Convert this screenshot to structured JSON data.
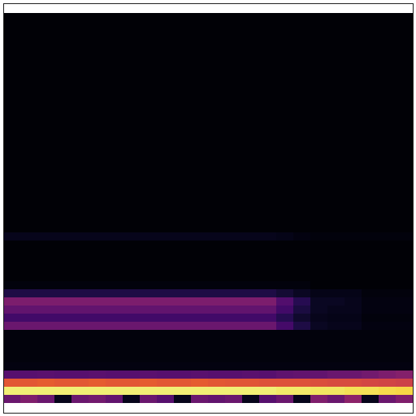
{
  "chart_data": {
    "type": "heatmap",
    "color": "inferno",
    "tick_labels": false,
    "color_range": [
      0,
      1
    ],
    "cells": [
      [
        0.01,
        0.01,
        0.01,
        0.01,
        0.01,
        0.01,
        0.01,
        0.01,
        0.01,
        0.01,
        0.01,
        0.01,
        0.01,
        0.01,
        0.01,
        0.01,
        0.01,
        0.01,
        0.01,
        0.01,
        0.01,
        0.01,
        0.01,
        0.01
      ],
      [
        0.01,
        0.01,
        0.01,
        0.01,
        0.01,
        0.01,
        0.01,
        0.01,
        0.01,
        0.01,
        0.01,
        0.01,
        0.01,
        0.01,
        0.01,
        0.01,
        0.01,
        0.01,
        0.01,
        0.01,
        0.01,
        0.01,
        0.01,
        0.01
      ],
      [
        0.01,
        0.01,
        0.01,
        0.01,
        0.01,
        0.01,
        0.01,
        0.01,
        0.01,
        0.01,
        0.01,
        0.01,
        0.01,
        0.01,
        0.01,
        0.01,
        0.01,
        0.01,
        0.01,
        0.01,
        0.01,
        0.01,
        0.01,
        0.01
      ],
      [
        0.01,
        0.01,
        0.01,
        0.01,
        0.01,
        0.01,
        0.01,
        0.01,
        0.01,
        0.01,
        0.01,
        0.01,
        0.01,
        0.01,
        0.01,
        0.01,
        0.01,
        0.01,
        0.01,
        0.01,
        0.01,
        0.01,
        0.01,
        0.01
      ],
      [
        0.01,
        0.01,
        0.01,
        0.01,
        0.01,
        0.01,
        0.01,
        0.01,
        0.01,
        0.01,
        0.01,
        0.01,
        0.01,
        0.01,
        0.01,
        0.01,
        0.01,
        0.01,
        0.01,
        0.01,
        0.01,
        0.01,
        0.01,
        0.01
      ],
      [
        0.01,
        0.01,
        0.01,
        0.01,
        0.01,
        0.01,
        0.01,
        0.01,
        0.01,
        0.01,
        0.01,
        0.01,
        0.01,
        0.01,
        0.01,
        0.01,
        0.01,
        0.01,
        0.01,
        0.01,
        0.01,
        0.01,
        0.01,
        0.01
      ],
      [
        0.01,
        0.01,
        0.01,
        0.01,
        0.01,
        0.01,
        0.01,
        0.01,
        0.01,
        0.01,
        0.01,
        0.01,
        0.01,
        0.01,
        0.01,
        0.01,
        0.01,
        0.01,
        0.01,
        0.01,
        0.01,
        0.01,
        0.01,
        0.01
      ],
      [
        0.01,
        0.01,
        0.01,
        0.01,
        0.01,
        0.01,
        0.01,
        0.01,
        0.01,
        0.01,
        0.01,
        0.01,
        0.01,
        0.01,
        0.01,
        0.01,
        0.01,
        0.01,
        0.01,
        0.01,
        0.01,
        0.01,
        0.01,
        0.01
      ],
      [
        0.01,
        0.01,
        0.01,
        0.01,
        0.01,
        0.01,
        0.01,
        0.01,
        0.01,
        0.01,
        0.01,
        0.01,
        0.01,
        0.01,
        0.01,
        0.01,
        0.01,
        0.01,
        0.01,
        0.01,
        0.01,
        0.01,
        0.01,
        0.01
      ],
      [
        0.01,
        0.01,
        0.01,
        0.01,
        0.01,
        0.01,
        0.01,
        0.01,
        0.01,
        0.01,
        0.01,
        0.01,
        0.01,
        0.01,
        0.01,
        0.01,
        0.01,
        0.01,
        0.01,
        0.01,
        0.01,
        0.01,
        0.01,
        0.01
      ],
      [
        0.01,
        0.01,
        0.01,
        0.01,
        0.01,
        0.01,
        0.01,
        0.01,
        0.01,
        0.01,
        0.01,
        0.01,
        0.01,
        0.01,
        0.01,
        0.01,
        0.01,
        0.01,
        0.01,
        0.01,
        0.01,
        0.01,
        0.01,
        0.01
      ],
      [
        0.01,
        0.01,
        0.01,
        0.01,
        0.01,
        0.01,
        0.01,
        0.01,
        0.01,
        0.01,
        0.01,
        0.01,
        0.01,
        0.01,
        0.01,
        0.01,
        0.01,
        0.01,
        0.01,
        0.01,
        0.01,
        0.01,
        0.01,
        0.01
      ],
      [
        0.01,
        0.01,
        0.01,
        0.01,
        0.01,
        0.01,
        0.01,
        0.01,
        0.01,
        0.01,
        0.01,
        0.01,
        0.01,
        0.01,
        0.01,
        0.01,
        0.01,
        0.01,
        0.01,
        0.01,
        0.01,
        0.01,
        0.01,
        0.01
      ],
      [
        0.01,
        0.01,
        0.01,
        0.01,
        0.01,
        0.01,
        0.01,
        0.01,
        0.01,
        0.01,
        0.01,
        0.01,
        0.01,
        0.01,
        0.01,
        0.01,
        0.01,
        0.01,
        0.01,
        0.01,
        0.01,
        0.01,
        0.01,
        0.01
      ],
      [
        0.01,
        0.01,
        0.01,
        0.01,
        0.01,
        0.01,
        0.01,
        0.01,
        0.01,
        0.01,
        0.01,
        0.01,
        0.01,
        0.01,
        0.01,
        0.01,
        0.01,
        0.01,
        0.01,
        0.01,
        0.01,
        0.01,
        0.01,
        0.01
      ],
      [
        0.01,
        0.01,
        0.01,
        0.01,
        0.01,
        0.01,
        0.01,
        0.01,
        0.01,
        0.01,
        0.01,
        0.01,
        0.01,
        0.01,
        0.01,
        0.01,
        0.01,
        0.01,
        0.01,
        0.01,
        0.01,
        0.01,
        0.01,
        0.01
      ],
      [
        0.01,
        0.01,
        0.01,
        0.01,
        0.01,
        0.01,
        0.01,
        0.01,
        0.01,
        0.01,
        0.01,
        0.01,
        0.01,
        0.01,
        0.01,
        0.01,
        0.01,
        0.01,
        0.01,
        0.01,
        0.01,
        0.01,
        0.01,
        0.01
      ],
      [
        0.01,
        0.01,
        0.01,
        0.01,
        0.01,
        0.01,
        0.01,
        0.01,
        0.01,
        0.01,
        0.01,
        0.01,
        0.01,
        0.01,
        0.01,
        0.01,
        0.01,
        0.01,
        0.01,
        0.01,
        0.01,
        0.01,
        0.01,
        0.01
      ],
      [
        0.01,
        0.01,
        0.01,
        0.01,
        0.01,
        0.01,
        0.01,
        0.01,
        0.01,
        0.01,
        0.01,
        0.01,
        0.01,
        0.01,
        0.01,
        0.01,
        0.01,
        0.01,
        0.01,
        0.01,
        0.01,
        0.01,
        0.01,
        0.01
      ],
      [
        0.01,
        0.01,
        0.01,
        0.01,
        0.01,
        0.01,
        0.01,
        0.01,
        0.01,
        0.01,
        0.01,
        0.01,
        0.01,
        0.01,
        0.01,
        0.01,
        0.01,
        0.01,
        0.01,
        0.01,
        0.01,
        0.01,
        0.01,
        0.01
      ],
      [
        0.01,
        0.01,
        0.01,
        0.01,
        0.01,
        0.01,
        0.01,
        0.01,
        0.01,
        0.01,
        0.01,
        0.01,
        0.01,
        0.01,
        0.01,
        0.01,
        0.01,
        0.01,
        0.01,
        0.01,
        0.01,
        0.01,
        0.01,
        0.01
      ],
      [
        0.01,
        0.01,
        0.01,
        0.01,
        0.01,
        0.01,
        0.01,
        0.01,
        0.01,
        0.01,
        0.01,
        0.01,
        0.01,
        0.01,
        0.01,
        0.01,
        0.01,
        0.01,
        0.01,
        0.01,
        0.01,
        0.01,
        0.01,
        0.01
      ],
      [
        0.01,
        0.01,
        0.01,
        0.01,
        0.01,
        0.01,
        0.01,
        0.01,
        0.01,
        0.01,
        0.01,
        0.01,
        0.01,
        0.01,
        0.01,
        0.01,
        0.01,
        0.01,
        0.01,
        0.01,
        0.01,
        0.01,
        0.01,
        0.01
      ],
      [
        0.01,
        0.01,
        0.01,
        0.01,
        0.01,
        0.01,
        0.01,
        0.01,
        0.01,
        0.01,
        0.01,
        0.01,
        0.01,
        0.01,
        0.01,
        0.01,
        0.01,
        0.01,
        0.01,
        0.01,
        0.01,
        0.01,
        0.01,
        0.01
      ],
      [
        0.01,
        0.01,
        0.01,
        0.01,
        0.01,
        0.01,
        0.01,
        0.01,
        0.01,
        0.01,
        0.01,
        0.01,
        0.01,
        0.01,
        0.01,
        0.01,
        0.01,
        0.01,
        0.01,
        0.01,
        0.01,
        0.01,
        0.01,
        0.01
      ],
      [
        0.01,
        0.01,
        0.01,
        0.01,
        0.01,
        0.01,
        0.01,
        0.01,
        0.01,
        0.01,
        0.01,
        0.01,
        0.01,
        0.01,
        0.01,
        0.01,
        0.01,
        0.01,
        0.01,
        0.01,
        0.01,
        0.01,
        0.01,
        0.01
      ],
      [
        0.01,
        0.01,
        0.01,
        0.01,
        0.01,
        0.01,
        0.01,
        0.01,
        0.01,
        0.01,
        0.01,
        0.01,
        0.01,
        0.01,
        0.01,
        0.01,
        0.01,
        0.01,
        0.01,
        0.01,
        0.01,
        0.01,
        0.01,
        0.01
      ],
      [
        0.05,
        0.05,
        0.05,
        0.05,
        0.05,
        0.05,
        0.05,
        0.05,
        0.05,
        0.05,
        0.05,
        0.05,
        0.05,
        0.05,
        0.05,
        0.05,
        0.04,
        0.03,
        0.02,
        0.02,
        0.02,
        0.02,
        0.02,
        0.02
      ],
      [
        0.01,
        0.01,
        0.01,
        0.01,
        0.01,
        0.01,
        0.01,
        0.01,
        0.01,
        0.01,
        0.01,
        0.01,
        0.01,
        0.01,
        0.01,
        0.01,
        0.01,
        0.01,
        0.01,
        0.01,
        0.01,
        0.01,
        0.01,
        0.01
      ],
      [
        0.01,
        0.01,
        0.01,
        0.01,
        0.01,
        0.01,
        0.01,
        0.01,
        0.01,
        0.01,
        0.01,
        0.01,
        0.01,
        0.01,
        0.01,
        0.01,
        0.01,
        0.01,
        0.01,
        0.01,
        0.01,
        0.01,
        0.01,
        0.01
      ],
      [
        0.01,
        0.01,
        0.01,
        0.01,
        0.01,
        0.01,
        0.01,
        0.01,
        0.01,
        0.01,
        0.01,
        0.01,
        0.01,
        0.01,
        0.01,
        0.01,
        0.01,
        0.01,
        0.01,
        0.01,
        0.01,
        0.01,
        0.01,
        0.01
      ],
      [
        0.01,
        0.01,
        0.01,
        0.01,
        0.01,
        0.01,
        0.01,
        0.01,
        0.01,
        0.01,
        0.01,
        0.01,
        0.01,
        0.01,
        0.01,
        0.01,
        0.01,
        0.01,
        0.01,
        0.01,
        0.01,
        0.01,
        0.01,
        0.01
      ],
      [
        0.01,
        0.01,
        0.01,
        0.01,
        0.01,
        0.01,
        0.01,
        0.01,
        0.01,
        0.01,
        0.01,
        0.01,
        0.01,
        0.01,
        0.01,
        0.01,
        0.01,
        0.01,
        0.01,
        0.01,
        0.01,
        0.01,
        0.01,
        0.01
      ],
      [
        0.02,
        0.02,
        0.02,
        0.02,
        0.02,
        0.02,
        0.02,
        0.02,
        0.02,
        0.02,
        0.02,
        0.02,
        0.02,
        0.02,
        0.02,
        0.02,
        0.02,
        0.02,
        0.01,
        0.01,
        0.01,
        0.01,
        0.01,
        0.01
      ],
      [
        0.12,
        0.12,
        0.12,
        0.12,
        0.12,
        0.12,
        0.12,
        0.12,
        0.12,
        0.12,
        0.12,
        0.12,
        0.12,
        0.12,
        0.12,
        0.12,
        0.09,
        0.06,
        0.04,
        0.04,
        0.04,
        0.02,
        0.02,
        0.02
      ],
      [
        0.34,
        0.34,
        0.34,
        0.34,
        0.34,
        0.34,
        0.34,
        0.34,
        0.34,
        0.34,
        0.34,
        0.34,
        0.34,
        0.34,
        0.34,
        0.34,
        0.24,
        0.14,
        0.06,
        0.06,
        0.05,
        0.03,
        0.03,
        0.03
      ],
      [
        0.28,
        0.28,
        0.28,
        0.28,
        0.28,
        0.28,
        0.28,
        0.28,
        0.28,
        0.28,
        0.28,
        0.28,
        0.28,
        0.28,
        0.28,
        0.28,
        0.2,
        0.11,
        0.06,
        0.05,
        0.05,
        0.03,
        0.03,
        0.03
      ],
      [
        0.2,
        0.2,
        0.2,
        0.2,
        0.2,
        0.2,
        0.2,
        0.2,
        0.2,
        0.2,
        0.2,
        0.2,
        0.2,
        0.2,
        0.2,
        0.2,
        0.14,
        0.08,
        0.05,
        0.04,
        0.04,
        0.02,
        0.02,
        0.02
      ],
      [
        0.3,
        0.3,
        0.3,
        0.3,
        0.3,
        0.3,
        0.3,
        0.3,
        0.3,
        0.3,
        0.3,
        0.3,
        0.3,
        0.3,
        0.3,
        0.3,
        0.21,
        0.12,
        0.06,
        0.05,
        0.05,
        0.03,
        0.03,
        0.03
      ],
      [
        0.02,
        0.02,
        0.02,
        0.02,
        0.02,
        0.02,
        0.02,
        0.02,
        0.02,
        0.02,
        0.02,
        0.02,
        0.02,
        0.02,
        0.02,
        0.02,
        0.02,
        0.02,
        0.02,
        0.02,
        0.02,
        0.02,
        0.02,
        0.02
      ],
      [
        0.02,
        0.02,
        0.02,
        0.02,
        0.02,
        0.02,
        0.02,
        0.02,
        0.02,
        0.02,
        0.02,
        0.02,
        0.02,
        0.02,
        0.02,
        0.02,
        0.02,
        0.02,
        0.02,
        0.02,
        0.02,
        0.02,
        0.02,
        0.02
      ],
      [
        0.02,
        0.02,
        0.02,
        0.02,
        0.02,
        0.02,
        0.02,
        0.02,
        0.02,
        0.02,
        0.02,
        0.02,
        0.02,
        0.02,
        0.02,
        0.02,
        0.02,
        0.02,
        0.02,
        0.02,
        0.02,
        0.02,
        0.02,
        0.02
      ],
      [
        0.02,
        0.02,
        0.02,
        0.02,
        0.02,
        0.02,
        0.02,
        0.02,
        0.02,
        0.02,
        0.02,
        0.02,
        0.02,
        0.02,
        0.02,
        0.02,
        0.02,
        0.02,
        0.02,
        0.02,
        0.02,
        0.02,
        0.02,
        0.02
      ],
      [
        0.03,
        0.03,
        0.03,
        0.03,
        0.03,
        0.03,
        0.03,
        0.03,
        0.03,
        0.03,
        0.03,
        0.03,
        0.03,
        0.03,
        0.03,
        0.03,
        0.03,
        0.03,
        0.03,
        0.03,
        0.03,
        0.03,
        0.03,
        0.03
      ],
      [
        0.25,
        0.25,
        0.26,
        0.25,
        0.25,
        0.26,
        0.25,
        0.25,
        0.26,
        0.25,
        0.25,
        0.26,
        0.25,
        0.25,
        0.26,
        0.25,
        0.27,
        0.28,
        0.28,
        0.3,
        0.3,
        0.32,
        0.34,
        0.36
      ],
      [
        0.62,
        0.62,
        0.63,
        0.62,
        0.62,
        0.63,
        0.62,
        0.62,
        0.63,
        0.62,
        0.62,
        0.63,
        0.62,
        0.61,
        0.61,
        0.6,
        0.6,
        0.6,
        0.59,
        0.58,
        0.58,
        0.57,
        0.56,
        0.55
      ],
      [
        0.95,
        0.95,
        0.95,
        0.95,
        0.95,
        0.95,
        0.95,
        0.95,
        0.95,
        0.95,
        0.95,
        0.95,
        0.95,
        0.95,
        0.95,
        0.95,
        0.94,
        0.94,
        0.93,
        0.93,
        0.92,
        0.92,
        0.91,
        0.9
      ],
      [
        0.3,
        0.35,
        0.3,
        0.05,
        0.3,
        0.32,
        0.28,
        0.05,
        0.3,
        0.25,
        0.05,
        0.3,
        0.28,
        0.3,
        0.05,
        0.25,
        0.3,
        0.05,
        0.35,
        0.3,
        0.38,
        0.05,
        0.3,
        0.35
      ]
    ]
  }
}
